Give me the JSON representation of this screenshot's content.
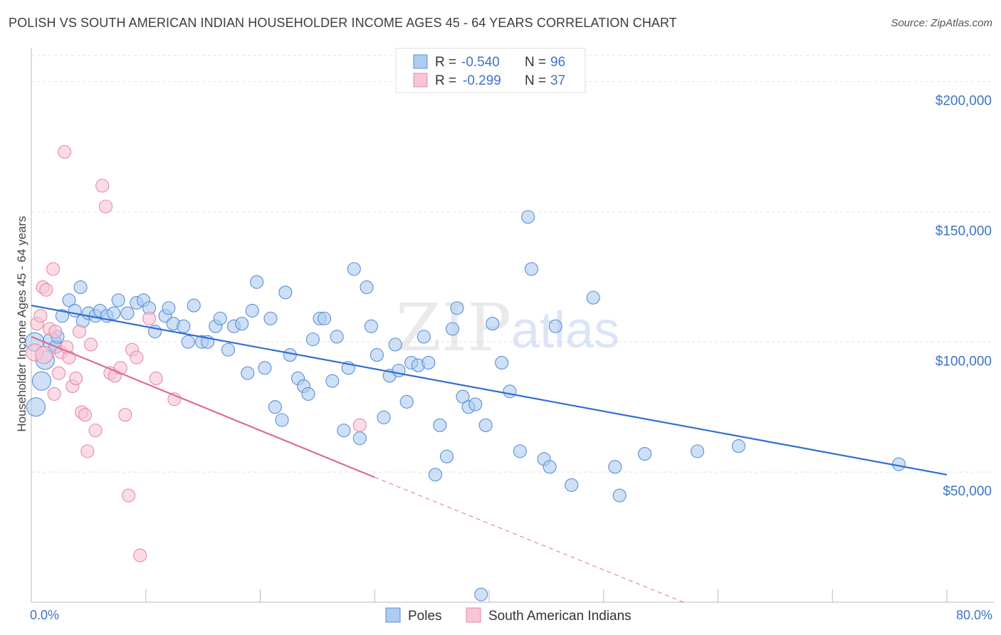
{
  "title": "POLISH VS SOUTH AMERICAN INDIAN HOUSEHOLDER INCOME AGES 45 - 64 YEARS CORRELATION CHART",
  "source": "Source: ZipAtlas.com",
  "watermark": {
    "zip": "ZIP",
    "atlas": "atlas"
  },
  "chart_data": {
    "type": "scatter",
    "ylabel": "Householder Income Ages 45 - 64 years",
    "xlim": [
      0,
      80
    ],
    "ylim": [
      0,
      210000
    ],
    "x_ticks": [
      0,
      80
    ],
    "x_tick_labels": [
      "0.0%",
      "80.0%"
    ],
    "y_ticks": [
      50000,
      100000,
      150000,
      200000
    ],
    "y_tick_labels": [
      "$50,000",
      "$100,000",
      "$150,000",
      "$200,000"
    ],
    "grid": true,
    "legend_placement": "top-center",
    "stats_legend": [
      {
        "r_label": "R =",
        "r_value": "-0.540",
        "n_label": "N =",
        "n_value": "96"
      },
      {
        "r_label": "R =",
        "r_value": "-0.299",
        "n_label": "N =",
        "n_value": "37"
      }
    ],
    "series": [
      {
        "name": "Poles",
        "color": "#5b8fd6",
        "fill": "#aecbf0",
        "trend": {
          "x1": 0,
          "y1": 114000,
          "x2": 80,
          "y2": 49000,
          "color": "#2f6ed1"
        },
        "points": [
          [
            0.4,
            75000
          ],
          [
            0.9,
            85000
          ],
          [
            1.2,
            93000
          ],
          [
            1.8,
            100000
          ],
          [
            2.1,
            98000
          ],
          [
            2.3,
            102000
          ],
          [
            2.7,
            110000
          ],
          [
            3.3,
            116000
          ],
          [
            3.8,
            112000
          ],
          [
            4.3,
            121000
          ],
          [
            4.5,
            108000
          ],
          [
            5.0,
            111000
          ],
          [
            5.6,
            110000
          ],
          [
            6.0,
            112000
          ],
          [
            6.6,
            110000
          ],
          [
            7.2,
            111000
          ],
          [
            7.6,
            116000
          ],
          [
            8.4,
            111000
          ],
          [
            9.2,
            115000
          ],
          [
            9.8,
            116000
          ],
          [
            10.3,
            113000
          ],
          [
            10.8,
            104000
          ],
          [
            11.7,
            110000
          ],
          [
            12.0,
            113000
          ],
          [
            12.4,
            107000
          ],
          [
            13.3,
            106000
          ],
          [
            13.7,
            100000
          ],
          [
            14.2,
            114000
          ],
          [
            14.9,
            100000
          ],
          [
            15.4,
            100000
          ],
          [
            16.1,
            106000
          ],
          [
            16.5,
            109000
          ],
          [
            17.2,
            97000
          ],
          [
            17.7,
            106000
          ],
          [
            18.4,
            107000
          ],
          [
            18.9,
            88000
          ],
          [
            19.3,
            112000
          ],
          [
            19.7,
            123000
          ],
          [
            20.4,
            90000
          ],
          [
            20.9,
            109000
          ],
          [
            21.3,
            75000
          ],
          [
            21.9,
            70000
          ],
          [
            22.2,
            119000
          ],
          [
            22.6,
            95000
          ],
          [
            23.3,
            86000
          ],
          [
            23.8,
            83000
          ],
          [
            24.2,
            80000
          ],
          [
            24.6,
            101000
          ],
          [
            25.2,
            109000
          ],
          [
            25.6,
            109000
          ],
          [
            26.3,
            85000
          ],
          [
            26.7,
            102000
          ],
          [
            27.3,
            66000
          ],
          [
            27.7,
            90000
          ],
          [
            28.2,
            128000
          ],
          [
            28.7,
            63000
          ],
          [
            29.3,
            121000
          ],
          [
            29.7,
            106000
          ],
          [
            30.2,
            95000
          ],
          [
            30.8,
            71000
          ],
          [
            31.3,
            87000
          ],
          [
            31.8,
            99000
          ],
          [
            32.1,
            89000
          ],
          [
            32.8,
            77000
          ],
          [
            33.2,
            92000
          ],
          [
            33.8,
            91000
          ],
          [
            34.3,
            102000
          ],
          [
            34.7,
            92000
          ],
          [
            35.3,
            49000
          ],
          [
            35.7,
            68000
          ],
          [
            36.3,
            56000
          ],
          [
            36.8,
            105000
          ],
          [
            37.2,
            113000
          ],
          [
            37.7,
            79000
          ],
          [
            38.2,
            75000
          ],
          [
            38.8,
            76000
          ],
          [
            39.3,
            3000
          ],
          [
            39.7,
            68000
          ],
          [
            40.3,
            107000
          ],
          [
            41.1,
            92000
          ],
          [
            41.8,
            81000
          ],
          [
            42.7,
            58000
          ],
          [
            43.4,
            148000
          ],
          [
            43.7,
            128000
          ],
          [
            44.8,
            55000
          ],
          [
            45.3,
            52000
          ],
          [
            45.8,
            106000
          ],
          [
            47.2,
            45000
          ],
          [
            49.1,
            117000
          ],
          [
            51.0,
            52000
          ],
          [
            51.4,
            41000
          ],
          [
            53.6,
            57000
          ],
          [
            58.2,
            58000
          ],
          [
            61.8,
            60000
          ],
          [
            75.8,
            53000
          ],
          [
            0.3,
            100000
          ]
        ]
      },
      {
        "name": "South American Indians",
        "color": "#e58aa9",
        "fill": "#f8c4d6",
        "trend": {
          "x1": 0,
          "y1": 102000,
          "x2": 30,
          "y2": 48000,
          "dash_to_x": 57,
          "dash_to_y": 0,
          "color": "#e06b94"
        },
        "points": [
          [
            0.3,
            96000
          ],
          [
            0.5,
            107000
          ],
          [
            0.8,
            110000
          ],
          [
            1.0,
            121000
          ],
          [
            1.3,
            120000
          ],
          [
            1.6,
            105000
          ],
          [
            1.9,
            128000
          ],
          [
            2.1,
            104000
          ],
          [
            2.4,
            88000
          ],
          [
            2.6,
            96000
          ],
          [
            2.0,
            80000
          ],
          [
            2.9,
            173000
          ],
          [
            3.1,
            98000
          ],
          [
            3.3,
            94000
          ],
          [
            3.6,
            83000
          ],
          [
            3.9,
            86000
          ],
          [
            4.2,
            104000
          ],
          [
            4.4,
            73000
          ],
          [
            4.7,
            72000
          ],
          [
            4.9,
            58000
          ],
          [
            5.2,
            99000
          ],
          [
            5.6,
            66000
          ],
          [
            6.2,
            160000
          ],
          [
            6.5,
            152000
          ],
          [
            6.9,
            88000
          ],
          [
            7.3,
            87000
          ],
          [
            7.8,
            90000
          ],
          [
            8.2,
            72000
          ],
          [
            8.5,
            41000
          ],
          [
            8.8,
            97000
          ],
          [
            9.2,
            94000
          ],
          [
            9.5,
            18000
          ],
          [
            10.3,
            109000
          ],
          [
            10.9,
            86000
          ],
          [
            12.5,
            78000
          ],
          [
            28.7,
            68000
          ],
          [
            1.1,
            95000
          ]
        ]
      }
    ]
  },
  "bottom_legend": [
    {
      "label": "Poles",
      "color": "#aecbf0",
      "stroke": "#5b8fd6"
    },
    {
      "label": "South American Indians",
      "color": "#f8c4d6",
      "stroke": "#e58aa9"
    }
  ]
}
